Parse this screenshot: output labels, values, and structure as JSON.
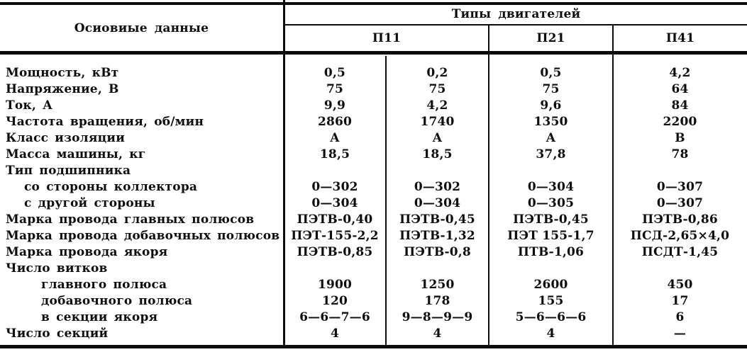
{
  "header": {
    "main_label": "Осиовиые данные",
    "types_label": "Типы двигателей",
    "type_columns": [
      {
        "label": "П11",
        "span": 2
      },
      {
        "label": "П21",
        "span": 1
      },
      {
        "label": "П41",
        "span": 1
      }
    ]
  },
  "rows": [
    {
      "label": "Мощность, кВт",
      "indent": 0,
      "values": [
        "0,5",
        "0,2",
        "0,5",
        "4,2"
      ]
    },
    {
      "label": "Напряжение, В",
      "indent": 0,
      "values": [
        "75",
        "75",
        "75",
        "64"
      ]
    },
    {
      "label": "Ток, А",
      "indent": 0,
      "values": [
        "9,9",
        "4,2",
        "9,6",
        "84"
      ]
    },
    {
      "label": "Частота вращения, об/мин",
      "indent": 0,
      "values": [
        "2860",
        "1740",
        "1350",
        "2200"
      ]
    },
    {
      "label": "Класс изоляции",
      "indent": 0,
      "values": [
        "А",
        "А",
        "А",
        "В"
      ]
    },
    {
      "label": "Масса машины, кг",
      "indent": 0,
      "values": [
        "18,5",
        "18,5",
        "37,8",
        "78"
      ]
    },
    {
      "label": "Тип подшипника",
      "indent": 0,
      "values": [
        "",
        "",
        "",
        ""
      ]
    },
    {
      "label": "со стороны коллектора",
      "indent": 1,
      "values": [
        "0—302",
        "0—302",
        "0—304",
        "0—307"
      ]
    },
    {
      "label": "с другой стороны",
      "indent": 1,
      "values": [
        "0—304",
        "0—304",
        "0—305",
        "0—307"
      ]
    },
    {
      "label": "Марка провода главных полюсов",
      "indent": 0,
      "values": [
        "ПЭТВ-0,40",
        "ПЭТВ-0,45",
        "ПЭТВ-0,45",
        "ПЭТВ-0,86"
      ]
    },
    {
      "label": "Марка провода добавочных полюсов",
      "indent": 0,
      "values": [
        "ПЭТ-155-2,2",
        "ПЭТВ-1,32",
        "ПЭТ 155-1,7",
        "ПСД-2,65×4,0"
      ]
    },
    {
      "label": "Марка провода якоря",
      "indent": 0,
      "values": [
        "ПЭТВ-0,85",
        "ПЭТВ-0,8",
        "ПТВ-1,06",
        "ПСДТ-1,45"
      ]
    },
    {
      "label": "Число витков",
      "indent": 0,
      "values": [
        "",
        "",
        "",
        ""
      ]
    },
    {
      "label": "главного полюса",
      "indent": 2,
      "values": [
        "1900",
        "1250",
        "2600",
        "450"
      ]
    },
    {
      "label": "добавочного полюса",
      "indent": 2,
      "values": [
        "120",
        "178",
        "155",
        "17"
      ]
    },
    {
      "label": "в секции якоря",
      "indent": 2,
      "values": [
        "6—6—7—6",
        "9—8—9—9",
        "5—6—6—6",
        "6"
      ]
    },
    {
      "label": "Число секций",
      "indent": 0,
      "values": [
        "4",
        "4",
        "4",
        "—"
      ]
    }
  ],
  "colors": {
    "ink": "#0d0d0d",
    "paper": "#ffffff"
  }
}
